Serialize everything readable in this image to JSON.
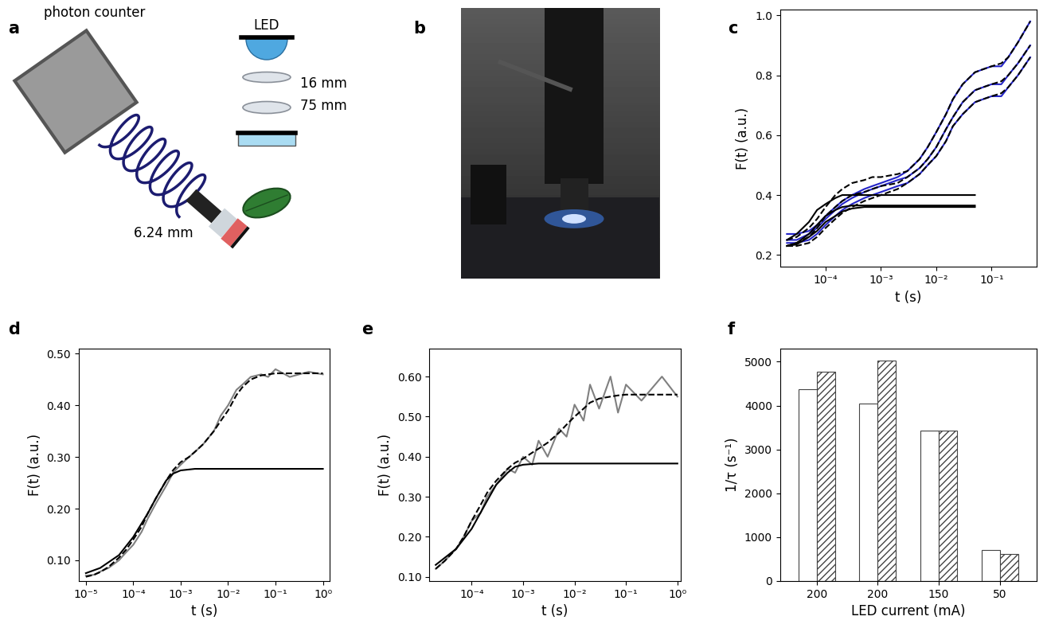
{
  "panel_labels": [
    "a",
    "b",
    "c",
    "d",
    "e",
    "f"
  ],
  "diagram": {
    "title": "photon counter",
    "led": "LED",
    "lens1": "16 mm",
    "lens2": "75 mm",
    "fiber_lens": "6.24 mm"
  },
  "chart_data": [
    {
      "type": "line",
      "log": "x",
      "xlabel": "t (s)",
      "ylabel": "F(t) (a.u.)",
      "xlim": [
        1.5e-05,
        0.65
      ],
      "ylim": [
        0.16,
        1.02
      ],
      "xticks": [
        {
          "value": 0.0001,
          "label": "10⁻⁴"
        },
        {
          "value": 0.001,
          "label": "10⁻³"
        },
        {
          "value": 0.01,
          "label": "10⁻²"
        },
        {
          "value": 0.1,
          "label": "10⁻¹"
        }
      ],
      "yticks": [
        0.2,
        0.4,
        0.6,
        0.8,
        1.0
      ],
      "series": [
        {
          "color": "#2424c8",
          "line_style": "solid",
          "x": [
            2e-05,
            3e-05,
            5e-05,
            7e-05,
            0.0001,
            0.00015,
            0.0002,
            0.0003,
            0.0005,
            0.0007,
            0.001,
            0.002,
            0.003,
            0.005,
            0.007,
            0.01,
            0.015,
            0.02,
            0.03,
            0.05,
            0.07,
            0.1,
            0.15,
            0.2,
            0.3,
            0.5
          ],
          "values": [
            0.27,
            0.27,
            0.28,
            0.3,
            0.33,
            0.36,
            0.38,
            0.4,
            0.42,
            0.43,
            0.44,
            0.46,
            0.48,
            0.52,
            0.56,
            0.61,
            0.67,
            0.72,
            0.77,
            0.81,
            0.82,
            0.83,
            0.83,
            0.86,
            0.91,
            0.98
          ]
        },
        {
          "color": "#2424c8",
          "line_style": "solid",
          "x": [
            2e-05,
            3e-05,
            5e-05,
            7e-05,
            0.0001,
            0.00015,
            0.0002,
            0.0003,
            0.0005,
            0.0007,
            0.001,
            0.002,
            0.003,
            0.005,
            0.007,
            0.01,
            0.015,
            0.02,
            0.03,
            0.05,
            0.07,
            0.1,
            0.15,
            0.2,
            0.3,
            0.5
          ],
          "values": [
            0.25,
            0.25,
            0.27,
            0.29,
            0.32,
            0.35,
            0.37,
            0.39,
            0.41,
            0.42,
            0.43,
            0.45,
            0.46,
            0.49,
            0.52,
            0.56,
            0.62,
            0.66,
            0.71,
            0.75,
            0.76,
            0.77,
            0.77,
            0.8,
            0.84,
            0.9
          ]
        },
        {
          "color": "#2424c8",
          "line_style": "solid",
          "x": [
            2e-05,
            3e-05,
            5e-05,
            7e-05,
            0.0001,
            0.00015,
            0.0002,
            0.0003,
            0.0005,
            0.0007,
            0.001,
            0.002,
            0.003,
            0.005,
            0.007,
            0.01,
            0.015,
            0.02,
            0.03,
            0.05,
            0.07,
            0.1,
            0.15,
            0.2,
            0.3,
            0.5
          ],
          "values": [
            0.24,
            0.24,
            0.25,
            0.27,
            0.3,
            0.33,
            0.35,
            0.37,
            0.39,
            0.4,
            0.41,
            0.43,
            0.44,
            0.47,
            0.5,
            0.53,
            0.58,
            0.63,
            0.67,
            0.71,
            0.72,
            0.73,
            0.73,
            0.76,
            0.8,
            0.86
          ]
        },
        {
          "color": "#000000",
          "line_style": "dashed",
          "x": [
            2e-05,
            3e-05,
            5e-05,
            7e-05,
            0.0001,
            0.00015,
            0.0002,
            0.0003,
            0.0005,
            0.0007,
            0.001,
            0.002,
            0.003,
            0.005,
            0.007,
            0.01,
            0.015,
            0.02,
            0.03,
            0.05,
            0.07,
            0.1,
            0.15,
            0.2,
            0.3,
            0.5
          ],
          "values": [
            0.25,
            0.26,
            0.29,
            0.32,
            0.36,
            0.4,
            0.42,
            0.44,
            0.45,
            0.46,
            0.46,
            0.47,
            0.48,
            0.52,
            0.56,
            0.61,
            0.67,
            0.72,
            0.77,
            0.81,
            0.82,
            0.83,
            0.84,
            0.86,
            0.91,
            0.98
          ]
        },
        {
          "color": "#000000",
          "line_style": "dashed",
          "x": [
            2e-05,
            3e-05,
            5e-05,
            7e-05,
            0.0001,
            0.00015,
            0.0002,
            0.0003,
            0.0005,
            0.0007,
            0.001,
            0.002,
            0.003,
            0.005,
            0.007,
            0.01,
            0.015,
            0.02,
            0.03,
            0.05,
            0.07,
            0.1,
            0.15,
            0.2,
            0.3,
            0.5
          ],
          "values": [
            0.23,
            0.24,
            0.26,
            0.29,
            0.33,
            0.36,
            0.38,
            0.4,
            0.41,
            0.42,
            0.43,
            0.44,
            0.46,
            0.49,
            0.52,
            0.56,
            0.62,
            0.66,
            0.71,
            0.75,
            0.76,
            0.77,
            0.78,
            0.8,
            0.84,
            0.9
          ]
        },
        {
          "color": "#000000",
          "line_style": "dashed",
          "x": [
            2e-05,
            3e-05,
            5e-05,
            7e-05,
            0.0001,
            0.00015,
            0.0002,
            0.0003,
            0.0005,
            0.0007,
            0.001,
            0.002,
            0.003,
            0.005,
            0.007,
            0.01,
            0.015,
            0.02,
            0.03,
            0.05,
            0.07,
            0.1,
            0.15,
            0.2,
            0.3,
            0.5
          ],
          "values": [
            0.23,
            0.23,
            0.24,
            0.26,
            0.29,
            0.32,
            0.34,
            0.36,
            0.38,
            0.39,
            0.4,
            0.42,
            0.44,
            0.47,
            0.5,
            0.53,
            0.58,
            0.63,
            0.67,
            0.71,
            0.72,
            0.73,
            0.74,
            0.76,
            0.8,
            0.86
          ]
        },
        {
          "color": "#000000",
          "line_style": "solid",
          "x": [
            2e-05,
            3e-05,
            5e-05,
            7e-05,
            0.0001,
            0.00015,
            0.0002,
            0.0003,
            0.0005,
            0.001,
            0.05
          ],
          "values": [
            0.25,
            0.27,
            0.31,
            0.35,
            0.37,
            0.39,
            0.4,
            0.4,
            0.4,
            0.4,
            0.4
          ]
        },
        {
          "color": "#000000",
          "line_style": "solid",
          "x": [
            2e-05,
            3e-05,
            5e-05,
            7e-05,
            0.0001,
            0.00015,
            0.0002,
            0.0003,
            0.0005,
            0.001,
            0.05
          ],
          "values": [
            0.23,
            0.24,
            0.27,
            0.3,
            0.33,
            0.35,
            0.36,
            0.365,
            0.365,
            0.365,
            0.365
          ]
        },
        {
          "color": "#000000",
          "line_style": "solid",
          "x": [
            2e-05,
            3e-05,
            5e-05,
            7e-05,
            0.0001,
            0.00015,
            0.0002,
            0.0003,
            0.0005,
            0.001,
            0.05
          ],
          "values": [
            0.23,
            0.235,
            0.26,
            0.28,
            0.31,
            0.33,
            0.345,
            0.355,
            0.36,
            0.36,
            0.36
          ]
        }
      ]
    },
    {
      "type": "line",
      "log": "x",
      "xlabel": "t (s)",
      "ylabel": "F(t) (a.u.)",
      "xlim": [
        7e-06,
        1.4
      ],
      "ylim": [
        0.06,
        0.51
      ],
      "xticks": [
        {
          "value": 1e-05,
          "label": "10⁻⁵"
        },
        {
          "value": 0.0001,
          "label": "10⁻⁴"
        },
        {
          "value": 0.001,
          "label": "10⁻³"
        },
        {
          "value": 0.01,
          "label": "10⁻²"
        },
        {
          "value": 0.1,
          "label": "10⁻¹"
        },
        {
          "value": 1.0,
          "label": "10⁰"
        }
      ],
      "yticks": [
        {
          "value": 0.1,
          "label": "0.10"
        },
        {
          "value": 0.2,
          "label": "0.20"
        },
        {
          "value": 0.3,
          "label": "0.30"
        },
        {
          "value": 0.4,
          "label": "0.40"
        },
        {
          "value": 0.5,
          "label": "0.50"
        }
      ],
      "series": [
        {
          "color": "#808080",
          "line_style": "solid",
          "x": [
            1e-05,
            1.5e-05,
            2e-05,
            3e-05,
            5e-05,
            7e-05,
            0.0001,
            0.00015,
            0.0002,
            0.0003,
            0.0005,
            0.0007,
            0.001,
            0.0015,
            0.002,
            0.003,
            0.005,
            0.007,
            0.01,
            0.015,
            0.02,
            0.03,
            0.05,
            0.07,
            0.1,
            0.2,
            0.5,
            1.0
          ],
          "values": [
            0.07,
            0.072,
            0.078,
            0.085,
            0.1,
            0.115,
            0.13,
            0.155,
            0.18,
            0.21,
            0.245,
            0.27,
            0.285,
            0.3,
            0.31,
            0.325,
            0.35,
            0.38,
            0.4,
            0.43,
            0.44,
            0.455,
            0.46,
            0.455,
            0.47,
            0.455,
            0.465,
            0.46
          ]
        },
        {
          "color": "#000000",
          "line_style": "dashed",
          "x": [
            1e-05,
            1.5e-05,
            2e-05,
            3e-05,
            5e-05,
            7e-05,
            0.0001,
            0.00015,
            0.0002,
            0.0003,
            0.0005,
            0.0007,
            0.001,
            0.0015,
            0.002,
            0.003,
            0.005,
            0.007,
            0.01,
            0.015,
            0.02,
            0.03,
            0.05,
            0.07,
            0.1,
            0.2,
            0.5,
            1.0
          ],
          "values": [
            0.068,
            0.072,
            0.077,
            0.087,
            0.105,
            0.12,
            0.14,
            0.165,
            0.19,
            0.22,
            0.255,
            0.275,
            0.29,
            0.3,
            0.31,
            0.325,
            0.35,
            0.37,
            0.39,
            0.42,
            0.435,
            0.45,
            0.458,
            0.46,
            0.462,
            0.462,
            0.462,
            0.462
          ]
        },
        {
          "color": "#000000",
          "line_style": "solid",
          "x": [
            1e-05,
            2e-05,
            5e-05,
            0.0001,
            0.0002,
            0.0003,
            0.0005,
            0.0007,
            0.001,
            0.002,
            1.0
          ],
          "values": [
            0.075,
            0.085,
            0.11,
            0.145,
            0.19,
            0.22,
            0.255,
            0.268,
            0.274,
            0.277,
            0.277
          ]
        }
      ]
    },
    {
      "type": "line",
      "log": "x",
      "xlabel": "t (s)",
      "ylabel": "F(t) (a.u.)",
      "xlim": [
        1.5e-05,
        1.15
      ],
      "ylim": [
        0.09,
        0.67
      ],
      "xticks": [
        {
          "value": 0.0001,
          "label": "10⁻⁴"
        },
        {
          "value": 0.001,
          "label": "10⁻³"
        },
        {
          "value": 0.01,
          "label": "10⁻²"
        },
        {
          "value": 0.1,
          "label": "10⁻¹"
        },
        {
          "value": 1.0,
          "label": "10⁰"
        }
      ],
      "yticks": [
        {
          "value": 0.1,
          "label": "0.10"
        },
        {
          "value": 0.2,
          "label": "0.20"
        },
        {
          "value": 0.3,
          "label": "0.30"
        },
        {
          "value": 0.4,
          "label": "0.40"
        },
        {
          "value": 0.5,
          "label": "0.50"
        },
        {
          "value": 0.6,
          "label": "0.60"
        }
      ],
      "series": [
        {
          "color": "#808080",
          "line_style": "solid",
          "x": [
            2e-05,
            3e-05,
            5e-05,
            7e-05,
            0.0001,
            0.00015,
            0.0002,
            0.0003,
            0.0005,
            0.0007,
            0.001,
            0.0015,
            0.002,
            0.003,
            0.005,
            0.007,
            0.01,
            0.015,
            0.02,
            0.03,
            0.05,
            0.07,
            0.1,
            0.2,
            0.5,
            1.0
          ],
          "values": [
            0.12,
            0.14,
            0.17,
            0.2,
            0.24,
            0.26,
            0.3,
            0.33,
            0.37,
            0.36,
            0.4,
            0.38,
            0.44,
            0.4,
            0.47,
            0.45,
            0.53,
            0.49,
            0.58,
            0.52,
            0.6,
            0.51,
            0.58,
            0.54,
            0.6,
            0.55
          ]
        },
        {
          "color": "#000000",
          "line_style": "dashed",
          "x": [
            2e-05,
            3e-05,
            5e-05,
            7e-05,
            0.0001,
            0.00015,
            0.0002,
            0.0003,
            0.0005,
            0.0007,
            0.001,
            0.0015,
            0.002,
            0.003,
            0.005,
            0.007,
            0.01,
            0.015,
            0.02,
            0.03,
            0.05,
            0.07,
            0.1,
            0.2,
            0.5,
            1.0
          ],
          "values": [
            0.12,
            0.14,
            0.17,
            0.2,
            0.24,
            0.28,
            0.31,
            0.34,
            0.37,
            0.385,
            0.395,
            0.41,
            0.42,
            0.435,
            0.46,
            0.48,
            0.5,
            0.52,
            0.535,
            0.545,
            0.55,
            0.553,
            0.555,
            0.555,
            0.555,
            0.555
          ]
        },
        {
          "color": "#000000",
          "line_style": "solid",
          "x": [
            2e-05,
            5e-05,
            0.0001,
            0.0002,
            0.0003,
            0.0005,
            0.0007,
            0.001,
            0.002,
            1.0
          ],
          "values": [
            0.13,
            0.17,
            0.22,
            0.29,
            0.33,
            0.36,
            0.375,
            0.38,
            0.383,
            0.383
          ]
        }
      ]
    },
    {
      "type": "bar",
      "xlabel": "LED current (mA)",
      "ylabel": "1/τ (s⁻¹)",
      "categories": [
        "200",
        "200",
        "150",
        "50"
      ],
      "ylim": [
        0,
        5300
      ],
      "yticks": [
        0,
        1000,
        2000,
        3000,
        4000,
        5000
      ],
      "series": [
        {
          "color": "#ffffff",
          "values": [
            4370,
            4040,
            3420,
            710
          ]
        },
        {
          "color": "#ffffff",
          "values": [
            4780,
            5030,
            3430,
            620
          ]
        }
      ]
    }
  ]
}
